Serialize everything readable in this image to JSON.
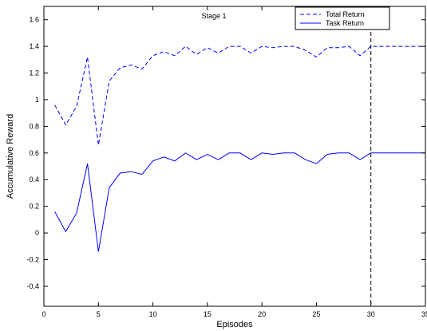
{
  "chart_data": {
    "type": "line",
    "title": "",
    "annotation": "Stage 1",
    "xlabel": "Episodes",
    "ylabel": "Accumulative Reward",
    "xlim": [
      0,
      35
    ],
    "ylim": [
      -0.55,
      1.7
    ],
    "xticks": [
      0,
      5,
      10,
      15,
      20,
      25,
      30,
      35
    ],
    "yticks": [
      -0.4,
      -0.2,
      0,
      0.2,
      0.4,
      0.6,
      0.8,
      1,
      1.2,
      1.4,
      1.6
    ],
    "ytick_labels": [
      "-0.4",
      "-0.2",
      "0",
      "0.2",
      "0.4",
      "0.6",
      "0.8",
      "1",
      "1.2",
      "1.4",
      "1.6"
    ],
    "xtick_labels": [
      "0",
      "5",
      "10",
      "15",
      "20",
      "25",
      "30",
      "35"
    ],
    "grid": false,
    "legend_position": "top-right",
    "vline": {
      "x": 30,
      "style": "dashed",
      "color": "#000000"
    },
    "series": [
      {
        "name": "Total Return",
        "style": "dashed",
        "color": "#0000ff",
        "x": [
          1,
          2,
          3,
          4,
          5,
          6,
          7,
          8,
          9,
          10,
          11,
          12,
          13,
          14,
          15,
          16,
          17,
          18,
          19,
          20,
          21,
          22,
          23,
          24,
          25,
          26,
          27,
          28,
          29,
          30,
          35
        ],
        "values": [
          0.96,
          0.81,
          0.95,
          1.32,
          0.66,
          1.14,
          1.24,
          1.26,
          1.23,
          1.33,
          1.36,
          1.33,
          1.4,
          1.34,
          1.39,
          1.35,
          1.4,
          1.4,
          1.35,
          1.4,
          1.39,
          1.4,
          1.4,
          1.37,
          1.32,
          1.39,
          1.39,
          1.4,
          1.33,
          1.4,
          1.4
        ]
      },
      {
        "name": "Task Return",
        "style": "solid",
        "color": "#0000ff",
        "x": [
          1,
          2,
          3,
          4,
          5,
          6,
          7,
          8,
          9,
          10,
          11,
          12,
          13,
          14,
          15,
          16,
          17,
          18,
          19,
          20,
          21,
          22,
          23,
          24,
          25,
          26,
          27,
          28,
          29,
          30,
          35
        ],
        "values": [
          0.16,
          0.01,
          0.15,
          0.52,
          -0.14,
          0.34,
          0.45,
          0.46,
          0.44,
          0.54,
          0.57,
          0.54,
          0.6,
          0.55,
          0.59,
          0.55,
          0.6,
          0.6,
          0.55,
          0.6,
          0.59,
          0.6,
          0.6,
          0.55,
          0.52,
          0.59,
          0.6,
          0.6,
          0.55,
          0.6,
          0.6
        ]
      }
    ]
  }
}
